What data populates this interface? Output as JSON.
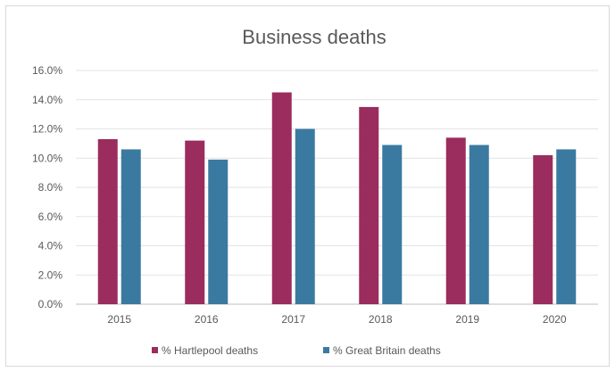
{
  "chart_data": {
    "type": "bar",
    "title": "Business deaths",
    "categories": [
      "2015",
      "2016",
      "2017",
      "2018",
      "2019",
      "2020"
    ],
    "series": [
      {
        "name": "% Hartlepool deaths",
        "color": "#9b2c5e",
        "values": [
          11.3,
          11.2,
          14.5,
          13.5,
          11.4,
          10.2
        ]
      },
      {
        "name": "% Great Britain deaths",
        "color": "#3b7aa0",
        "values": [
          10.6,
          9.9,
          12.0,
          10.9,
          10.9,
          10.6
        ]
      }
    ],
    "y_ticks": [
      "0.0%",
      "2.0%",
      "4.0%",
      "6.0%",
      "8.0%",
      "10.0%",
      "12.0%",
      "14.0%",
      "16.0%"
    ],
    "ylim": [
      0,
      16
    ],
    "grid": true,
    "legend_position": "bottom",
    "xlabel": "",
    "ylabel": ""
  }
}
